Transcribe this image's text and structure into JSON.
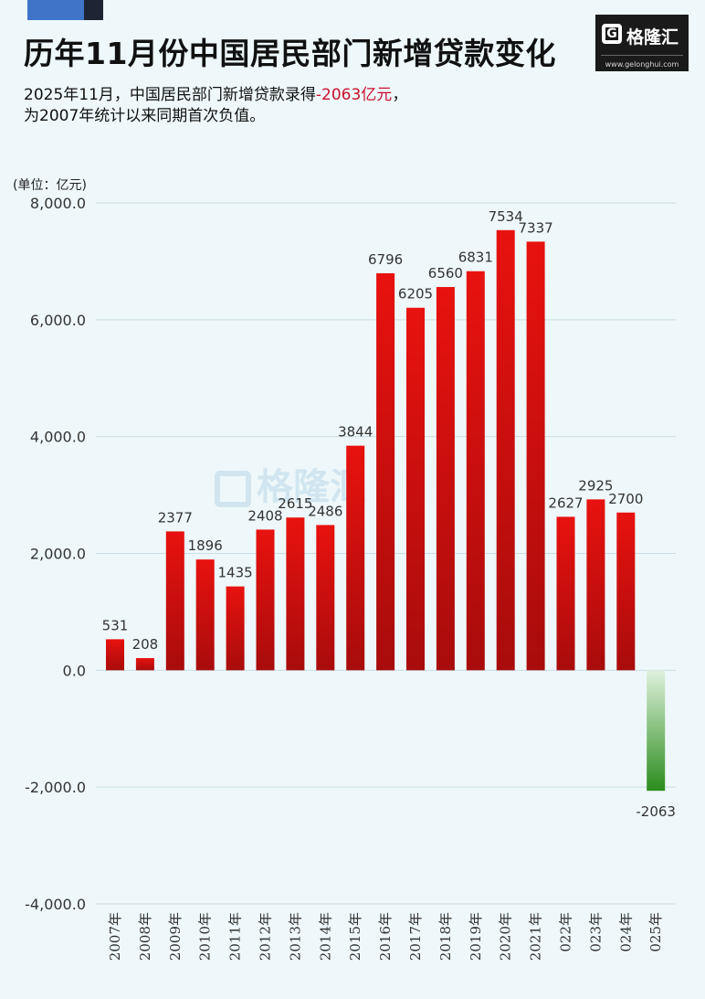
{
  "header": {
    "title": "历年11月份中国居民部门新增贷款变化",
    "subtitle_line1_a": "2025年11月，中国居民部门新增贷款录得",
    "subtitle_line1_hl": "-2063亿元",
    "subtitle_line1_b": "，",
    "subtitle_line2": "为2007年统计以来同期首次负值。"
  },
  "logo": {
    "name": "格隆汇",
    "url": "www.gelonghui.com",
    "mark_icon": "G"
  },
  "watermark": {
    "text": "格隆汇"
  },
  "colors": {
    "positive": "#d8100f",
    "negative": "#2f8f1f",
    "grid": "#c9dde6",
    "label": "#333333"
  },
  "chart_data": {
    "type": "bar",
    "title": "历年11月份中国居民部门新增贷款变化",
    "unit_label": "(单位：亿元)",
    "categories": [
      "2007年",
      "2008年",
      "2009年",
      "2010年",
      "2011年",
      "2012年",
      "2013年",
      "2014年",
      "2015年",
      "2016年",
      "2017年",
      "2018年",
      "2019年",
      "2020年",
      "2021年",
      "022年",
      "023年",
      "024年",
      "025年"
    ],
    "values": [
      531,
      208,
      2377,
      1896,
      1435,
      2408,
      2615,
      2486,
      3844,
      6796,
      6205,
      6560,
      6831,
      7534,
      7337,
      2627,
      2925,
      2700,
      -2063
    ],
    "data_labels": [
      "531",
      "208",
      "2377",
      "1896",
      "1435",
      "2408",
      "2615",
      "2486",
      "3844",
      "6796",
      "6205",
      "6560",
      "6831",
      "7534",
      "7337",
      "2627",
      "2925",
      "2700",
      "-2063"
    ],
    "ylim": [
      -4000,
      8000
    ],
    "yticks": [
      8000,
      6000,
      4000,
      2000,
      0,
      -2000,
      -4000
    ],
    "ytick_labels": [
      "8,000.0",
      "6,000.0",
      "4,000.0",
      "2,000.0",
      "0.0",
      "-2,000.0",
      "-4,000.0"
    ],
    "grid": true,
    "legend": "none"
  }
}
